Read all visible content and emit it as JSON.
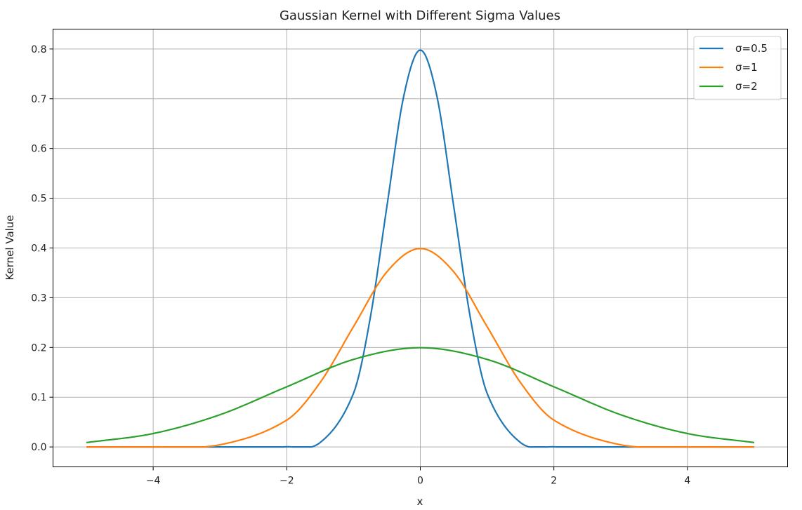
{
  "chart_data": {
    "type": "line",
    "title": "Gaussian Kernel with Different Sigma Values",
    "xlabel": "x",
    "ylabel": "Kernel Value",
    "xlim": [
      -5.5,
      5.5
    ],
    "ylim": [
      -0.04,
      0.84
    ],
    "x_range": [
      -5,
      5
    ],
    "xticks": [
      -4,
      -2,
      0,
      2,
      4
    ],
    "xtick_labels": [
      "−4",
      "−2",
      "0",
      "2",
      "4"
    ],
    "yticks": [
      0.0,
      0.1,
      0.2,
      0.3,
      0.4,
      0.5,
      0.6,
      0.7,
      0.8
    ],
    "ytick_labels": [
      "0.0",
      "0.1",
      "0.2",
      "0.3",
      "0.4",
      "0.5",
      "0.6",
      "0.7",
      "0.8"
    ],
    "grid": true,
    "legend_position": "top-right",
    "series": [
      {
        "name": "σ=0.5",
        "sigma": 0.5,
        "color": "#1f77b4",
        "x": [
          -5,
          -4,
          -3,
          -2,
          -1.5,
          -1,
          -0.75,
          -0.5,
          -0.25,
          0,
          0.25,
          0.5,
          0.75,
          1,
          1.5,
          2,
          3,
          4,
          5
        ],
        "y": [
          0.0,
          0.0,
          0.0,
          0.0003,
          0.0089,
          0.108,
          0.259,
          0.4839,
          0.7041,
          0.7979,
          0.7041,
          0.4839,
          0.259,
          0.108,
          0.0089,
          0.0003,
          0.0,
          0.0,
          0.0
        ]
      },
      {
        "name": "σ=1",
        "sigma": 1,
        "color": "#ff7f0e",
        "x": [
          -5,
          -4,
          -3,
          -2,
          -1.5,
          -1,
          -0.5,
          0,
          0.5,
          1,
          1.5,
          2,
          3,
          4,
          5
        ],
        "y": [
          0.0,
          0.0001,
          0.0044,
          0.054,
          0.1295,
          0.242,
          0.3521,
          0.3989,
          0.3521,
          0.242,
          0.1295,
          0.054,
          0.0044,
          0.0001,
          0.0
        ]
      },
      {
        "name": "σ=2",
        "sigma": 2,
        "color": "#2ca02c",
        "x": [
          -5,
          -4,
          -3,
          -2,
          -1,
          0,
          1,
          2,
          3,
          4,
          5
        ],
        "y": [
          0.0088,
          0.027,
          0.0648,
          0.121,
          0.176,
          0.1995,
          0.176,
          0.121,
          0.0648,
          0.027,
          0.0088
        ]
      }
    ]
  }
}
